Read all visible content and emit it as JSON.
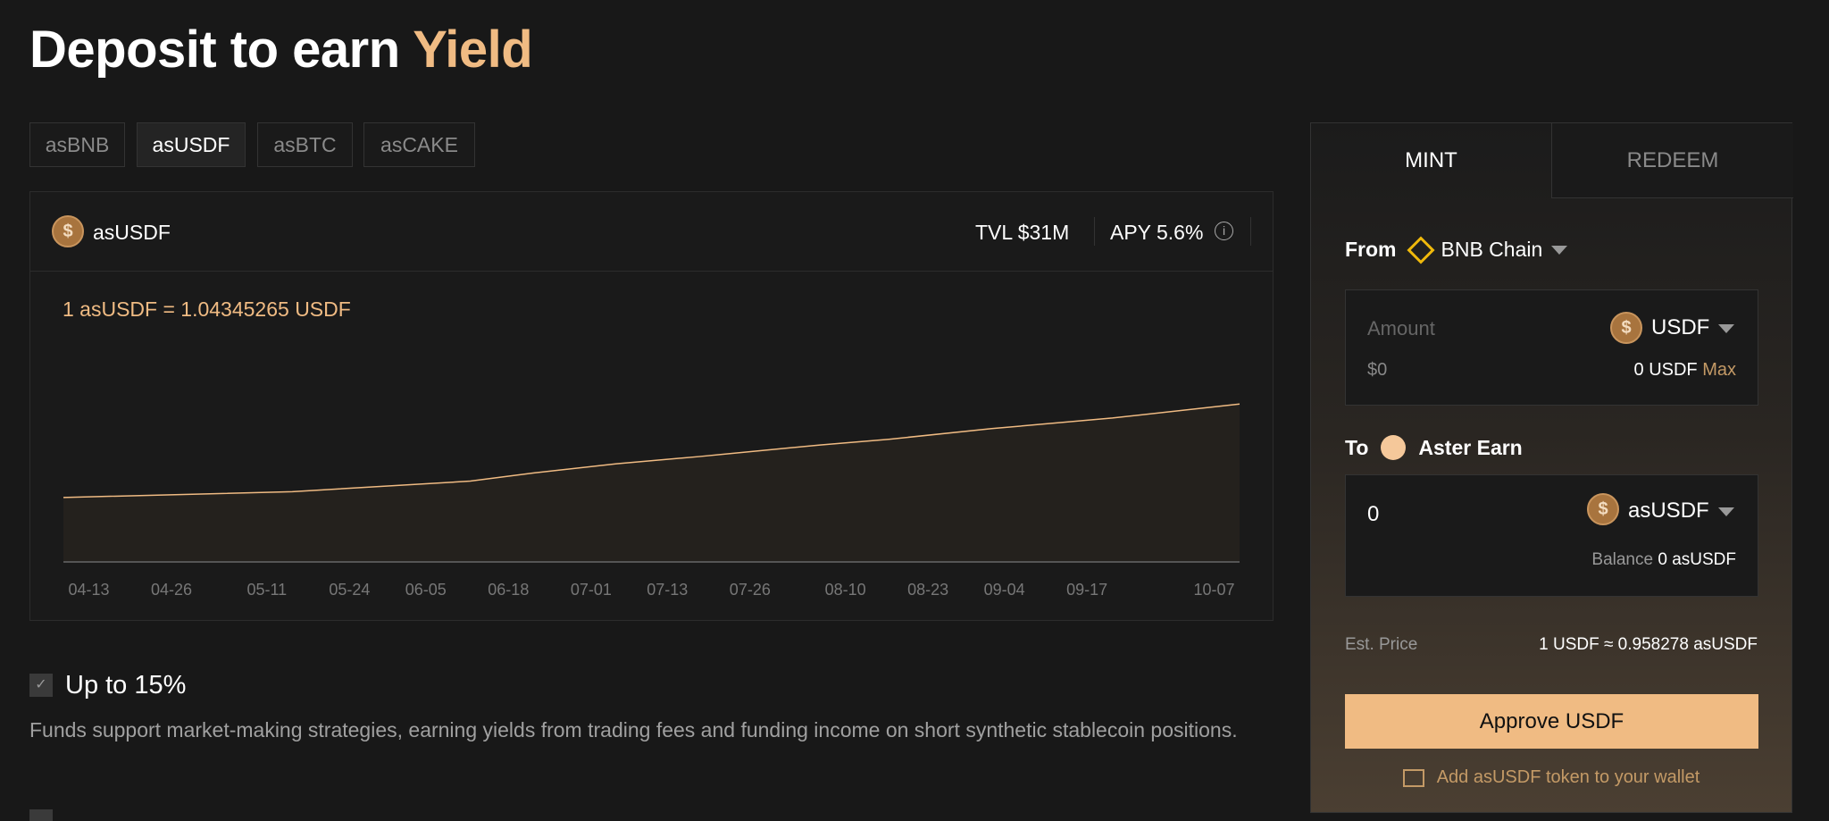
{
  "title": {
    "prefix": "Deposit to earn",
    "highlight": "Yield"
  },
  "vault_tabs": [
    {
      "label": "asBNB"
    },
    {
      "label": "asUSDF",
      "active": true
    },
    {
      "label": "asBTC"
    },
    {
      "label": "asCAKE"
    }
  ],
  "card": {
    "token": "asUSDF",
    "tvl": "TVL $31M",
    "apy": "APY 5.6%",
    "rate": "1 asUSDF = 1.04345265 USDF"
  },
  "chart_data": {
    "type": "area",
    "xlabel": "",
    "ylabel": "",
    "x_ticks": [
      "04-13",
      "04-26",
      "05-11",
      "05-24",
      "06-05",
      "06-18",
      "07-01",
      "07-13",
      "07-26",
      "08-10",
      "08-23",
      "09-04",
      "09-17",
      "10-07"
    ],
    "points": [
      [
        "04-09",
        1.0159
      ],
      [
        "05-15",
        1.0176
      ],
      [
        "06-12",
        1.0207
      ],
      [
        "06-22",
        1.0231
      ],
      [
        "07-05",
        1.0258
      ],
      [
        "07-18",
        1.0279
      ],
      [
        "08-06",
        1.0313
      ],
      [
        "08-17",
        1.033
      ],
      [
        "09-02",
        1.0361
      ],
      [
        "09-21",
        1.0392
      ],
      [
        "10-11",
        1.0433
      ]
    ],
    "ylim": [
      0.997,
      1.0625
    ],
    "grid": false,
    "line_color": "#f0bb83"
  },
  "features": [
    {
      "title": "Up to 15%",
      "checked": true,
      "description": "Funds support market-making strategies, earning yields from trading fees and funding income on short synthetic stablecoin positions."
    }
  ],
  "panel": {
    "tabs": {
      "mint": "MINT",
      "redeem": "REDEEM"
    },
    "from_label": "From",
    "from_chain": "BNB Chain",
    "amount_placeholder": "Amount",
    "amount_usd": "$0",
    "from_token": "USDF",
    "from_balance": "0 USDF",
    "max": "Max",
    "to_label": "To",
    "to_dest": "Aster Earn",
    "to_amount": "0",
    "to_token": "asUSDF",
    "balance_label": "Balance",
    "to_balance": "0 asUSDF",
    "est_price_label": "Est. Price",
    "est_price": "1 USDF ≈ 0.958278 asUSDF",
    "approve": "Approve USDF",
    "add_wallet": "Add asUSDF token to your wallet"
  },
  "colors": {
    "accent": "#f0bb83",
    "background": "#181818"
  }
}
